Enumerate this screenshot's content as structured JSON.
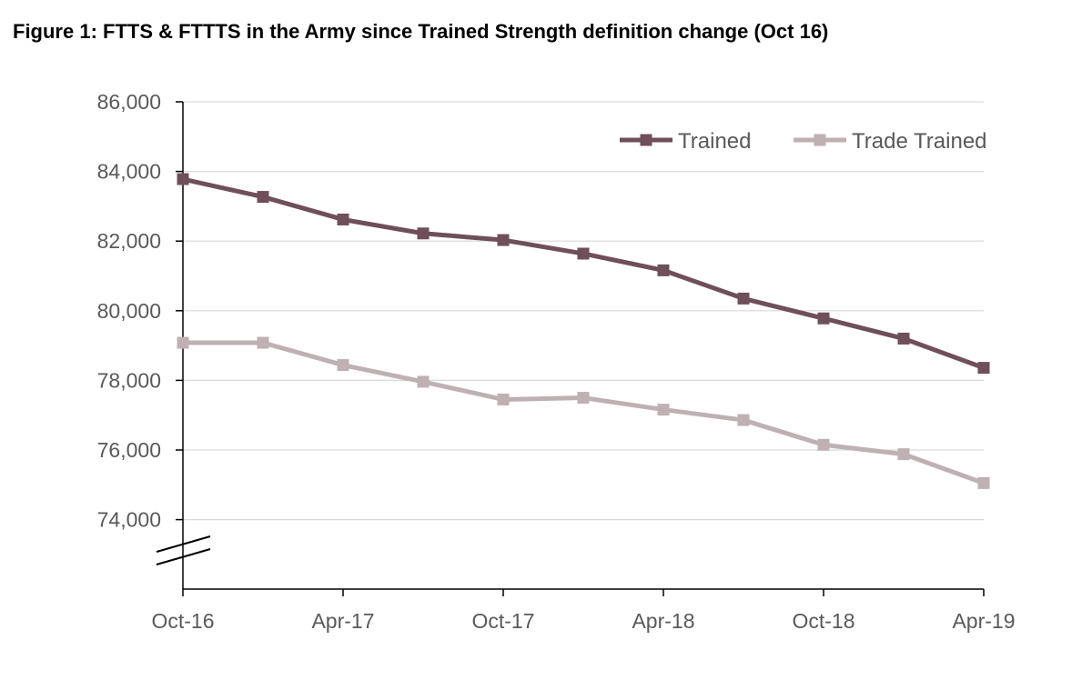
{
  "title": "Figure 1: FTTS & FTTTS in the Army since Trained Strength definition change (Oct 16)",
  "colors": {
    "trained": "#6e4f5a",
    "trade_trained": "#bfb0b3",
    "grid": "#d9d9d9",
    "axis": "#000000",
    "text": "#595959"
  },
  "chart_data": {
    "type": "line",
    "title": "Figure 1: FTTS & FTTTS in the Army since Trained Strength definition change (Oct 16)",
    "xlabel": "",
    "ylabel": "",
    "x": [
      "Oct-16",
      "Jan-17",
      "Apr-17",
      "Jul-17",
      "Oct-17",
      "Jan-18",
      "Apr-18",
      "Jul-18",
      "Oct-18",
      "Jan-19",
      "Apr-19"
    ],
    "x_tick_labels": [
      "Oct-16",
      "Apr-17",
      "Oct-17",
      "Apr-18",
      "Oct-18",
      "Apr-19"
    ],
    "y_tick_labels": [
      "86,000",
      "84,000",
      "82,000",
      "80,000",
      "78,000",
      "76,000",
      "74,000"
    ],
    "ylim": [
      72000,
      86000
    ],
    "y_axis_break": true,
    "grid": true,
    "legend_position": "top-right",
    "series": [
      {
        "name": "Trained",
        "values": [
          83780,
          83270,
          82620,
          82220,
          82030,
          81640,
          81160,
          80350,
          79780,
          79200,
          78360
        ]
      },
      {
        "name": "Trade Trained",
        "values": [
          79080,
          79080,
          78440,
          77960,
          77450,
          77500,
          77160,
          76860,
          76150,
          75880,
          75050
        ]
      }
    ]
  }
}
